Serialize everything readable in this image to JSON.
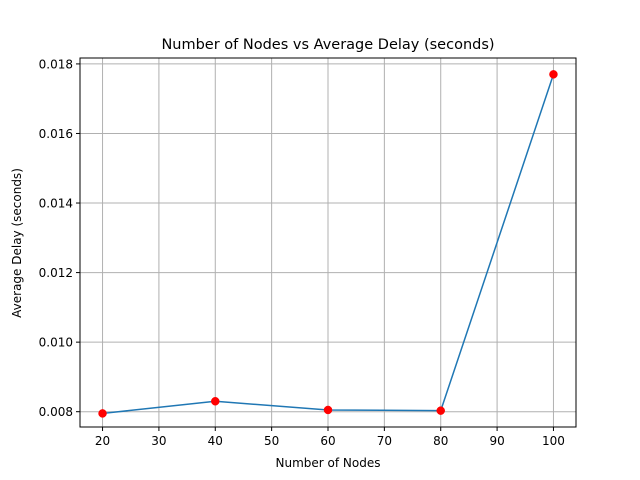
{
  "chart_data": {
    "type": "line",
    "title": "Number of Nodes vs Average Delay (seconds)",
    "xlabel": "Number of Nodes",
    "ylabel": "Average Delay (seconds)",
    "x": [
      20,
      40,
      60,
      80,
      100
    ],
    "series": [
      {
        "values": [
          0.00795,
          0.0083,
          0.00805,
          0.00803,
          0.0177
        ]
      }
    ],
    "xlim": [
      16,
      104
    ],
    "ylim": [
      0.00756,
      0.01817
    ],
    "xticks": [
      20,
      30,
      40,
      50,
      60,
      70,
      80,
      90,
      100
    ],
    "xtick_labels": [
      "20",
      "30",
      "40",
      "50",
      "60",
      "70",
      "80",
      "90",
      "100"
    ],
    "yticks": [
      0.008,
      0.01,
      0.012,
      0.014,
      0.016,
      0.018
    ],
    "ytick_labels": [
      "0.008",
      "0.010",
      "0.012",
      "0.014",
      "0.016",
      "0.018"
    ],
    "grid": true,
    "line_color": "#1f77b4",
    "marker_color": "#ff0000",
    "grid_color": "#b0b0b0"
  }
}
